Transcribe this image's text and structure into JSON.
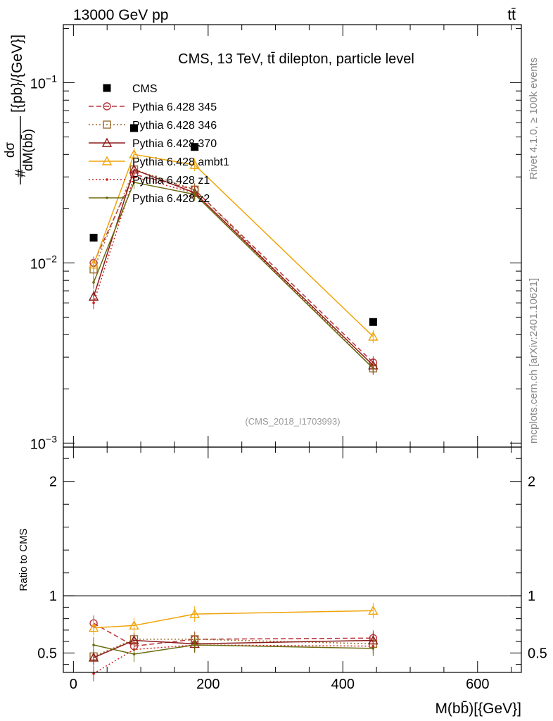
{
  "header": {
    "energy_label": "13000 GeV pp",
    "process_label": "tt̄"
  },
  "side_labels": {
    "rivet": "Rivet 4.1.0, ≥ 100k events",
    "mcplots": "mcplots.cern.ch [arXiv:2401.10621]"
  },
  "colors": {
    "cms": "#000000",
    "p345": "#b9343a",
    "p346": "#9b6d2c",
    "p370": "#8b1a1a",
    "ambt1": "#f0a30a",
    "z1": "#cc2020",
    "z2": "#6b6b0e",
    "analysis": "#999999"
  },
  "chart_data": [
    {
      "type": "line",
      "title": "CMS, 13 TeV, tt̄ dilepton, particle level",
      "analysis_id": "(CMS_2018_I1703993)",
      "ylabel_prefix": "#",
      "ylabel_num": "dσ",
      "ylabel_den": "dM(bb̄)",
      "ylabel_unit": "[{pb}/{GeV}]",
      "yscale": "log",
      "ylim": [
        0.00095,
        0.21
      ],
      "ytick_labels": [
        {
          "value": 0.1,
          "base": "10",
          "exp": "−1"
        },
        {
          "value": 0.01,
          "base": "10",
          "exp": "−2"
        },
        {
          "value": 0.001,
          "base": "10",
          "exp": "−3"
        }
      ],
      "x": [
        30,
        90,
        180,
        445
      ],
      "legend_position": "top-left",
      "series": [
        {
          "name": "CMS",
          "key": "cms",
          "marker": "square",
          "line": "none",
          "values": [
            0.0138,
            0.056,
            0.044,
            0.0047
          ]
        },
        {
          "name": "Pythia 6.428 345",
          "key": "p345",
          "marker": "circle",
          "line": "dashed",
          "values": [
            0.01,
            0.031,
            0.0255,
            0.0028
          ]
        },
        {
          "name": "Pythia 6.428 346",
          "key": "p346",
          "marker": "square-open",
          "line": "dotted",
          "values": [
            0.0092,
            0.033,
            0.0255,
            0.0026
          ]
        },
        {
          "name": "Pythia 6.428 370",
          "key": "p370",
          "marker": "triangle",
          "line": "solid",
          "values": [
            0.0065,
            0.033,
            0.0245,
            0.0027
          ]
        },
        {
          "name": "Pythia 6.428 ambt1",
          "key": "ambt1",
          "marker": "triangle",
          "line": "solid",
          "values": [
            0.0098,
            0.04,
            0.035,
            0.0039
          ]
        },
        {
          "name": "Pythia 6.428 z1",
          "key": "z1",
          "marker": "dot",
          "line": "dotted",
          "values": [
            0.006,
            0.03,
            0.0245,
            0.0026
          ]
        },
        {
          "name": "Pythia 6.428 z2",
          "key": "z2",
          "marker": "dot",
          "line": "solid",
          "values": [
            0.0078,
            0.028,
            0.024,
            0.0026
          ]
        }
      ]
    },
    {
      "type": "line",
      "ylabel": "Ratio to CMS",
      "xlabel": "M(bb̄)[{GeV}]",
      "xlim": [
        -15,
        665
      ],
      "ylim": [
        0.33,
        2.3
      ],
      "xtick_labels": [
        "0",
        "200",
        "400",
        "600"
      ],
      "xtick_values": [
        0,
        200,
        400,
        600
      ],
      "ytick_labels": [
        "0.5",
        "1",
        "2"
      ],
      "ytick_values": [
        0.5,
        1,
        2
      ],
      "reference_line": 1,
      "x": [
        30,
        90,
        180,
        445
      ],
      "series": [
        {
          "name": "Pythia 6.428 345",
          "key": "p345",
          "marker": "circle",
          "line": "dashed",
          "values": [
            0.76,
            0.56,
            0.62,
            0.63
          ]
        },
        {
          "name": "Pythia 6.428 346",
          "key": "p346",
          "marker": "square-open",
          "line": "dotted",
          "values": [
            0.47,
            0.62,
            0.62,
            0.58
          ]
        },
        {
          "name": "Pythia 6.428 370",
          "key": "p370",
          "marker": "triangle",
          "line": "solid",
          "values": [
            0.46,
            0.61,
            0.58,
            0.61
          ]
        },
        {
          "name": "Pythia 6.428 ambt1",
          "key": "ambt1",
          "marker": "triangle",
          "line": "solid",
          "values": [
            0.72,
            0.74,
            0.84,
            0.87
          ]
        },
        {
          "name": "Pythia 6.428 z1",
          "key": "z1",
          "marker": "dot",
          "line": "dotted",
          "values": [
            0.32,
            0.53,
            0.57,
            0.56
          ]
        },
        {
          "name": "Pythia 6.428 z2",
          "key": "z2",
          "marker": "dot",
          "line": "solid",
          "values": [
            0.57,
            0.49,
            0.57,
            0.54
          ]
        }
      ]
    }
  ]
}
